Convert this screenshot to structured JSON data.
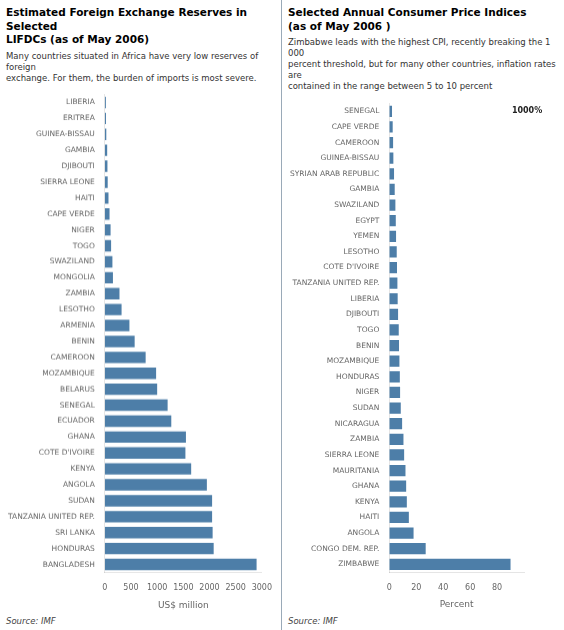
{
  "chart_data": [
    {
      "type": "bar",
      "orientation": "horizontal",
      "title": "Estimated Foreign Exchange Reserves in Selected\nLIFDCs (as of May 2006)",
      "subtitle": "Many countries situated in Africa have very low reserves of foreign\nexchange. For them, the burden of imports is most severe.",
      "source": "Source: IMF",
      "xlabel": "US$ million",
      "categories": [
        "BANGLADESH",
        "HONDURAS",
        "SRI LANKA",
        "TANZANIA UNITED REP.",
        "SUDAN",
        "ANGOLA",
        "KENYA",
        "COTE D'IVOIRE",
        "GHANA",
        "ECUADOR",
        "SENEGAL",
        "BELARUS",
        "MOZAMBIQUE",
        "CAMEROON",
        "BENIN",
        "ARMENIA",
        "LESOTHO",
        "ZAMBIA",
        "MONGOLIA",
        "SWAZILAND",
        "TOGO",
        "NIGER",
        "CAPE VERDE",
        "HAITI",
        "SIERRA LEONE",
        "DJIBOUTI",
        "GAMBIA",
        "GUINEA-BISSAU",
        "ERITREA",
        "LIBERIA"
      ],
      "values": [
        2900,
        2080,
        2060,
        2050,
        2050,
        1950,
        1650,
        1540,
        1550,
        1270,
        1200,
        1000,
        980,
        780,
        570,
        470,
        320,
        280,
        155,
        145,
        120,
        110,
        90,
        70,
        55,
        50,
        45,
        28,
        22,
        20
      ],
      "color": "#4d7ea8",
      "xlim": [
        0,
        3000
      ],
      "xticks": [
        0,
        500,
        1000,
        1500,
        2000,
        2500,
        3000
      ],
      "grid": false
    },
    {
      "type": "bar",
      "orientation": "horizontal",
      "title": "Selected Annual Consumer Price Indices\n(as of May 2006 )",
      "subtitle": "Zimbabwe leads with the highest CPI, recently breaking the 1 000\npercent threshold, but for many other countries, inflation rates are\ncontained in the range between 5 to 10 percent",
      "source": "Source: IMF",
      "xlabel": "Percent",
      "categories": [
        "ZIMBABWE",
        "CONGO DEM. REP.",
        "ANGOLA",
        "HAITI",
        "KENYA",
        "GHANA",
        "MAURITANIA",
        "SIERRA LEONE",
        "ZAMBIA",
        "NICARAGUA",
        "SUDAN",
        "NIGER",
        "HONDURAS",
        "MOZAMBIQUE",
        "BENIN",
        "TOGO",
        "DJIBOUTI",
        "LIBERIA",
        "TANZANIA UNITED REP.",
        "COTE D'IVOIRE",
        "LESOTHO",
        "YEMEN",
        "EGYPT",
        "SWAZILAND",
        "GAMBIA",
        "SYRIAN ARAB REPUBLIC",
        "GUINEA-BISSAU",
        "CAMEROON",
        "CAPE VERDE",
        "SENEGAL"
      ],
      "values": [
        90.0,
        27.0,
        18.0,
        14.5,
        13.0,
        12.5,
        12.0,
        11.0,
        10.5,
        9.5,
        8.5,
        8.0,
        7.8,
        7.5,
        7.2,
        7.0,
        6.5,
        6.2,
        6.0,
        5.7,
        5.5,
        5.0,
        4.8,
        4.5,
        4.0,
        3.5,
        3.0,
        2.8,
        2.5,
        2.0
      ],
      "color": "#4d7ea8",
      "xlim": [
        0,
        100
      ],
      "xticks": [
        0,
        20,
        40,
        60,
        80
      ],
      "grid": false,
      "annotations": [
        {
          "text": "1000%",
          "x": 91,
          "y": "SENEGAL"
        }
      ]
    }
  ]
}
